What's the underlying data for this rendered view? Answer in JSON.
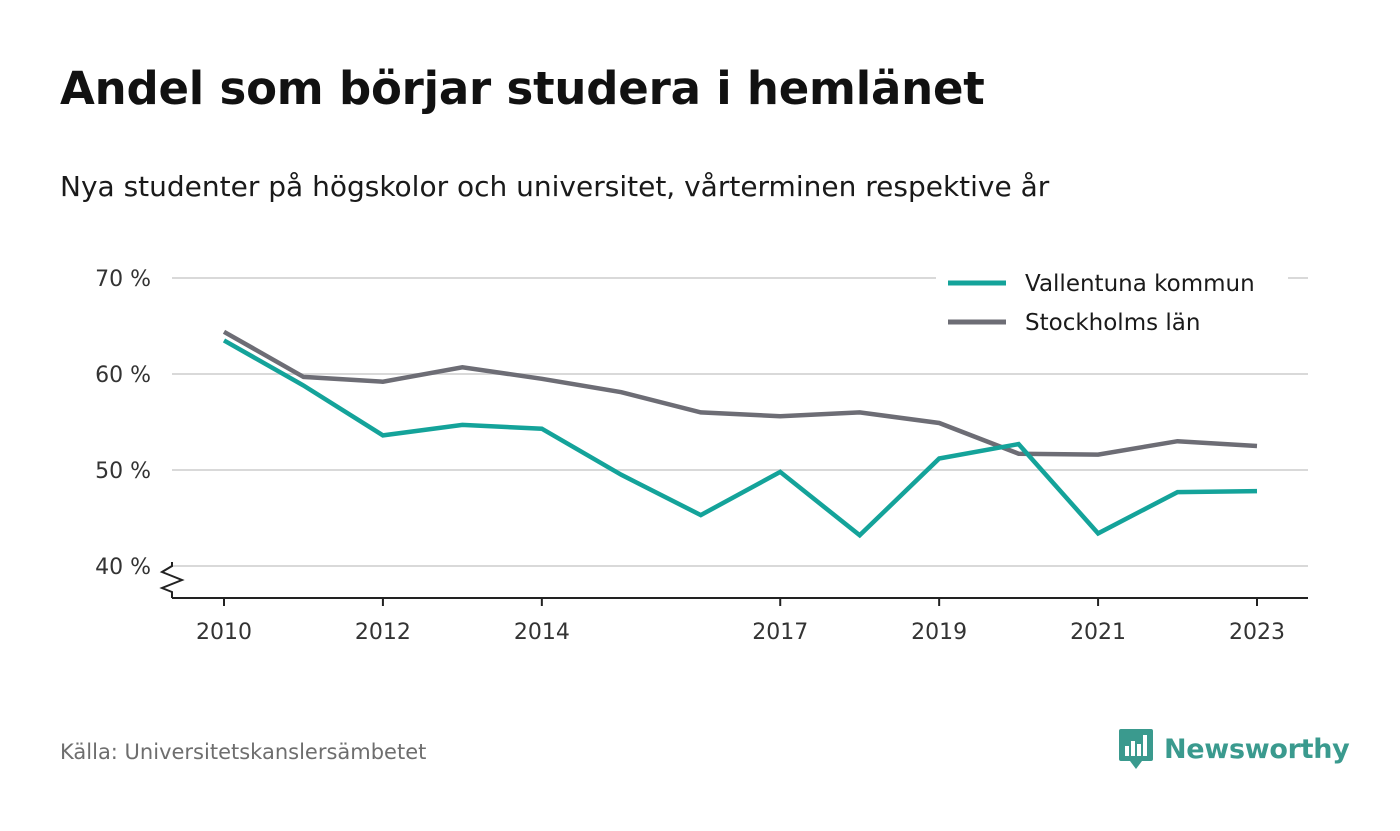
{
  "header": {
    "title": "Andel som börjar studera i hemlänet",
    "subtitle": "Nya studenter på högskolor och universitet, vårterminen respektive år"
  },
  "footer": {
    "source": "Källa: Universitetskanslersämbetet",
    "brand": "Newsworthy",
    "brand_icon": "bar-chart-bubble-icon"
  },
  "colors": {
    "vallentuna": "#14a39a",
    "stockholm": "#6d6d75",
    "grid": "#d9d9d9",
    "axis": "#222222",
    "brand": "#3a9a8e"
  },
  "chart_data": {
    "type": "line",
    "title": "Andel som börjar studera i hemlänet",
    "subtitle": "Nya studenter på högskolor och universitet, vårterminen respektive år",
    "x": [
      2010,
      2011,
      2012,
      2013,
      2014,
      2015,
      2016,
      2017,
      2018,
      2019,
      2020,
      2021,
      2022,
      2023
    ],
    "x_ticks": [
      "2010",
      "2012",
      "2014",
      "2017",
      "2019",
      "2021",
      "2023"
    ],
    "y_ticks": [
      "40 %",
      "50 %",
      "60 %",
      "70 %"
    ],
    "y_tick_values": [
      40,
      50,
      60,
      70
    ],
    "ylim": [
      40,
      70
    ],
    "y_axis_break": true,
    "grid": true,
    "legend_position": "top-right",
    "series": [
      {
        "name": "Vallentuna kommun",
        "color": "#14a39a",
        "values": [
          63.5,
          58.8,
          53.6,
          54.7,
          54.3,
          49.5,
          45.3,
          49.8,
          43.2,
          51.2,
          52.7,
          43.4,
          47.7,
          47.8
        ]
      },
      {
        "name": "Stockholms län",
        "color": "#6d6d75",
        "values": [
          64.4,
          59.7,
          59.2,
          60.7,
          59.5,
          58.1,
          56.0,
          55.6,
          56.0,
          54.9,
          51.7,
          51.6,
          53.0,
          52.5
        ]
      }
    ]
  }
}
